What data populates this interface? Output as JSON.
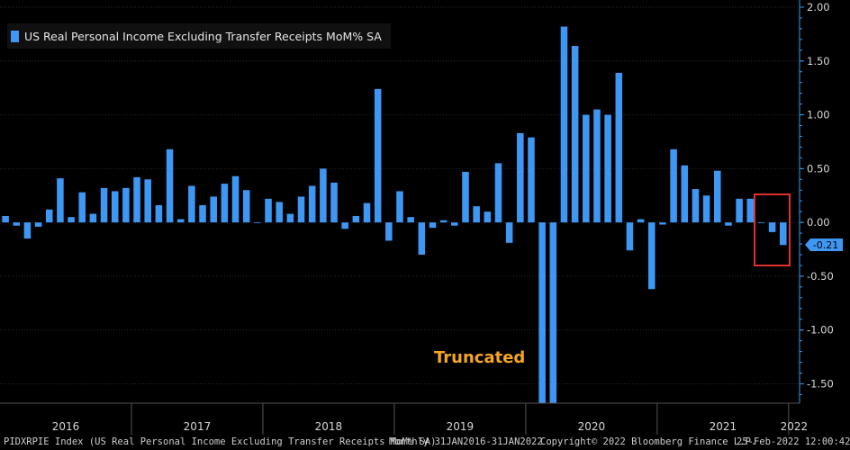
{
  "colors": {
    "bar": "#3d97f3",
    "background": "#000000",
    "grid": "#2a2a2a",
    "axis": "#3d97f3",
    "highlight_box": "#e03030",
    "annotation": "#f5a623",
    "last_value_tag": "#3d97f3"
  },
  "legend": {
    "label": "US Real Personal Income Excluding Transfer Receipts MoM% SA"
  },
  "annotation": {
    "text": "Truncated"
  },
  "last_value_tag": {
    "text": "-0.21"
  },
  "footer": {
    "left": "PIDXRPIE Index (US Real Personal Income Excluding Transfer Receipts MoM% SA)",
    "middle": "Monthly 31JAN2016-31JAN2022",
    "right": "Copyright© 2022 Bloomberg Finance L.P.",
    "date": "25-Feb-2022 12:00:42"
  },
  "chart_data": {
    "type": "bar",
    "title": "",
    "xlabel": "",
    "ylabel": "",
    "ylim": [
      -1.68,
      2.0
    ],
    "yticks": [
      "2.00",
      "1.50",
      "1.00",
      "0.50",
      "0.00",
      "-0.50",
      "-1.00",
      "-1.50"
    ],
    "year_labels": [
      "2016",
      "2017",
      "2018",
      "2019",
      "2020",
      "2021",
      "2022"
    ],
    "series": [
      {
        "name": "US Real Personal Income Excluding Transfer Receipts MoM% SA",
        "start": "Jan 2016",
        "end": "Jan 2022",
        "frequency": "Monthly",
        "values": [
          0.06,
          -0.03,
          -0.15,
          -0.04,
          0.12,
          0.41,
          0.05,
          0.28,
          0.08,
          0.32,
          0.29,
          0.32,
          0.42,
          0.4,
          0.16,
          0.68,
          0.03,
          0.34,
          0.16,
          0.24,
          0.36,
          0.43,
          0.3,
          0.0,
          0.22,
          0.19,
          0.08,
          0.24,
          0.34,
          0.5,
          0.37,
          -0.06,
          0.06,
          0.18,
          1.24,
          -0.17,
          0.29,
          0.05,
          -0.3,
          -0.05,
          0.02,
          -0.03,
          0.47,
          0.15,
          0.1,
          0.55,
          -0.19,
          0.83,
          0.79,
          -1.68,
          -1.68,
          1.82,
          1.64,
          1.0,
          1.05,
          1.0,
          1.39,
          -0.26,
          0.03,
          -0.62,
          -0.02,
          0.68,
          0.53,
          0.31,
          0.25,
          0.48,
          -0.03,
          0.22,
          0.22,
          0.0,
          -0.09,
          -0.21,
          null
        ]
      }
    ]
  }
}
